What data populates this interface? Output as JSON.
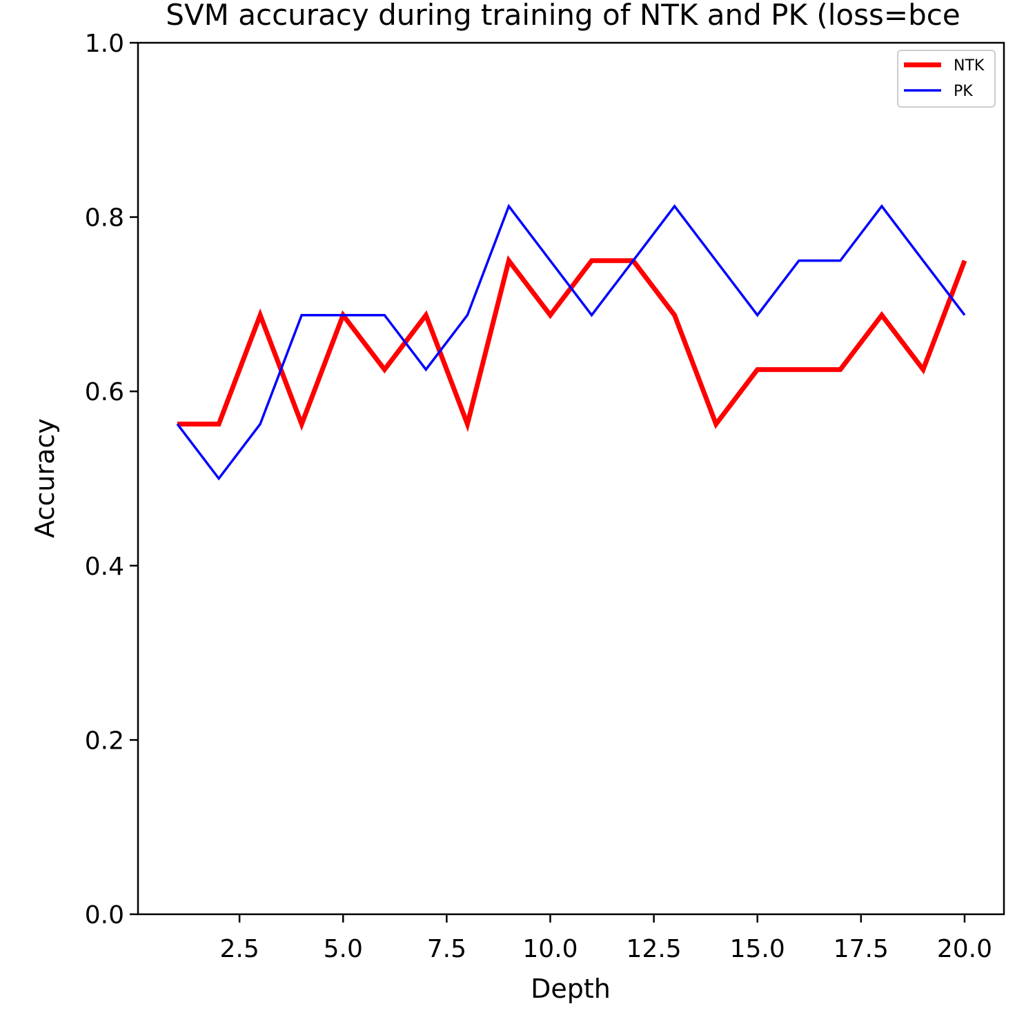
{
  "chart_data": {
    "type": "line",
    "title": "SVM accuracy during training of NTK and PK (loss=bce",
    "xlabel": "Depth",
    "ylabel": "Accuracy",
    "xlim": [
      0.05,
      20.95
    ],
    "ylim": [
      0,
      1
    ],
    "xticks": [
      2.5,
      5.0,
      7.5,
      10.0,
      12.5,
      15.0,
      17.5,
      20.0
    ],
    "xtick_labels": [
      "2.5",
      "5.0",
      "7.5",
      "10.0",
      "12.5",
      "15.0",
      "17.5",
      "20.0"
    ],
    "yticks": [
      0,
      0.2,
      0.4,
      0.6,
      0.8,
      1.0
    ],
    "ytick_labels": [
      "0.0",
      "0.2",
      "0.4",
      "0.6",
      "0.8",
      "1.0"
    ],
    "grid": false,
    "legend_position": "top-right",
    "x": [
      1,
      2,
      3,
      4,
      5,
      6,
      7,
      8,
      9,
      10,
      11,
      12,
      13,
      14,
      15,
      16,
      17,
      18,
      19,
      20
    ],
    "series": [
      {
        "name": "NTK",
        "color": "#ff0000",
        "values": [
          0.5625,
          0.5625,
          0.6875,
          0.5625,
          0.6875,
          0.625,
          0.6875,
          0.5625,
          0.75,
          0.6875,
          0.75,
          0.75,
          0.6875,
          0.5625,
          0.625,
          0.625,
          0.625,
          0.6875,
          0.625,
          0.75
        ]
      },
      {
        "name": "PK",
        "color": "#0000ff",
        "values": [
          0.5625,
          0.5,
          0.5625,
          0.6875,
          0.6875,
          0.6875,
          0.625,
          0.6875,
          0.8125,
          0.75,
          0.6875,
          0.75,
          0.8125,
          0.75,
          0.6875,
          0.75,
          0.75,
          0.8125,
          0.75,
          0.6875
        ]
      }
    ]
  }
}
